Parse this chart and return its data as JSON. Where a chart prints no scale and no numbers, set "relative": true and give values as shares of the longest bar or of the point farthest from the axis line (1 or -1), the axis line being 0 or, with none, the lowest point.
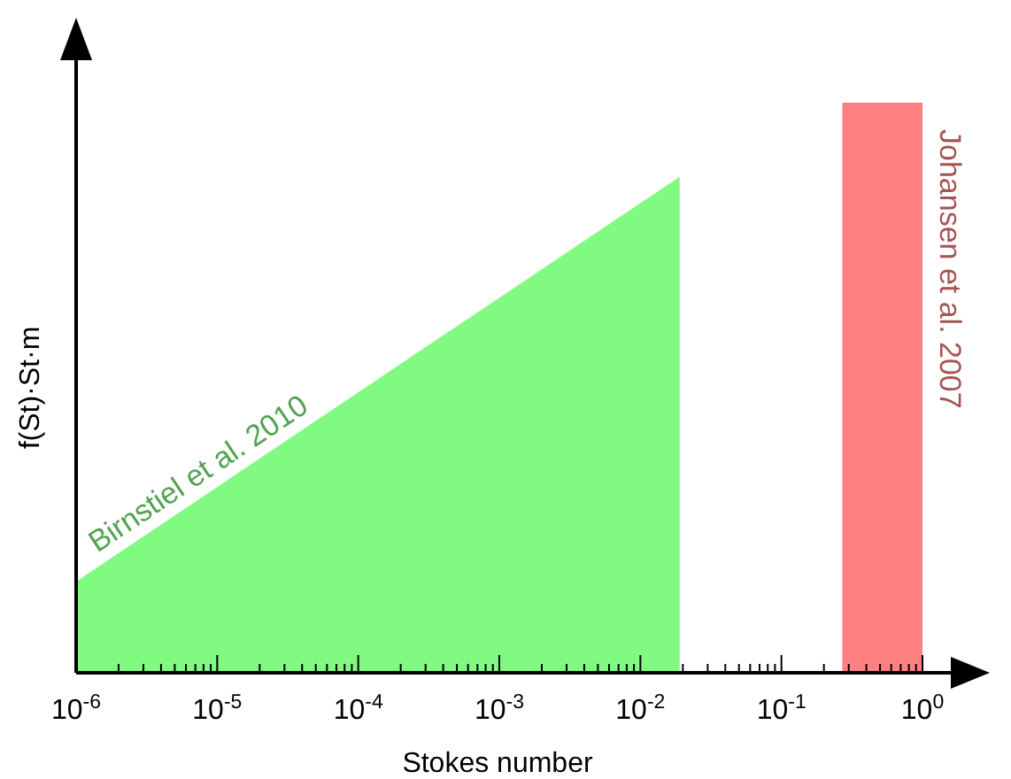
{
  "chart_data": {
    "type": "area",
    "xlabel": "Stokes number",
    "ylabel": "f(St)·St·m",
    "relative": true,
    "log": "x",
    "xlim": [
      1e-06,
      2
    ],
    "xticks": [
      {
        "value": 1e-06,
        "label": "10$^{-6}$"
      },
      {
        "value": 1e-05,
        "label": "10$^{-5}$"
      },
      {
        "value": 0.0001,
        "label": "10$^{-4}$"
      },
      {
        "value": 0.001,
        "label": "10$^{-3}$"
      },
      {
        "value": 0.01,
        "label": "10$^{-2}$"
      },
      {
        "value": 0.1,
        "label": "10$^{-1}$"
      },
      {
        "value": 1,
        "label": "10$^{0}$"
      }
    ],
    "series": [
      {
        "name": "Birnstiel et al. 2010",
        "color": "#80fa80",
        "x": [
          1e-06,
          0.019
        ],
        "values": [
          0.16,
          0.87
        ]
      },
      {
        "name": "Johansen et al. 2007",
        "color": "#ff8080",
        "x": [
          0.27,
          1
        ],
        "values": [
          1,
          1
        ]
      }
    ]
  }
}
